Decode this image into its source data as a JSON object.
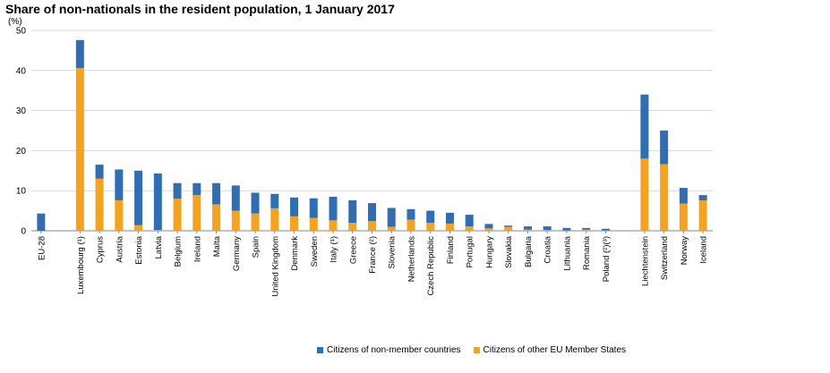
{
  "colors": {
    "non_member": "#2f6db5",
    "eu_member": "#f7a21b",
    "grid": "#d9d9d9",
    "axis": "#888888"
  },
  "chart_data": {
    "type": "bar",
    "stacked": true,
    "title": "Share of non-nationals in the resident population, 1 January 2017",
    "ylabel": "(%)",
    "ylim": [
      0,
      50
    ],
    "yticks": [
      0,
      10,
      20,
      30,
      40,
      50
    ],
    "grid": true,
    "legend_position": "bottom",
    "categories": [
      "EU-28",
      "Luxembourg (¹)",
      "Cyprus",
      "Austria",
      "Estonia",
      "Latvia",
      "Belgium",
      "Ireland",
      "Malta",
      "Germany",
      "Spain",
      "United Kingdom",
      "Denmark",
      "Sweden",
      "Italy (¹)",
      "Greece",
      "France (²)",
      "Slovenia",
      "Netherlands",
      "Czech Republic",
      "Finland",
      "Portugal",
      "Hungary",
      "Slovakia",
      "Bulgaria",
      "Croatia",
      "Lithuania",
      "Romania",
      "Poland (²)(³)",
      "Liechtenstein",
      "Switzerland",
      "Norway",
      "Iceland"
    ],
    "groups": [
      1,
      0,
      0,
      0,
      0,
      0,
      0,
      0,
      0,
      0,
      0,
      0,
      0,
      0,
      0,
      0,
      0,
      0,
      0,
      0,
      0,
      0,
      0,
      0,
      0,
      0,
      0,
      0,
      0,
      2,
      2,
      2,
      2
    ],
    "series": [
      {
        "name": "Citizens of other EU Member States",
        "values": [
          0,
          40.6,
          13.0,
          7.6,
          1.4,
          0.2,
          8.0,
          8.9,
          6.6,
          5.0,
          4.3,
          5.6,
          3.6,
          3.2,
          2.6,
          2.0,
          2.4,
          1.0,
          2.8,
          2.0,
          1.8,
          1.1,
          0.6,
          1.0,
          0.3,
          0.2,
          0.1,
          0.3,
          0.1,
          18.0,
          16.6,
          6.8,
          7.6
        ]
      },
      {
        "name": "Citizens of non-member countries",
        "values": [
          4.3,
          7.0,
          3.5,
          7.7,
          13.6,
          14.1,
          3.9,
          3.0,
          5.3,
          6.3,
          5.2,
          3.6,
          4.7,
          4.9,
          5.9,
          5.6,
          4.5,
          4.7,
          2.6,
          3.0,
          2.7,
          2.9,
          1.1,
          0.3,
          0.8,
          0.9,
          0.6,
          0.4,
          0.4,
          16.0,
          8.4,
          3.9,
          1.3
        ]
      }
    ]
  }
}
